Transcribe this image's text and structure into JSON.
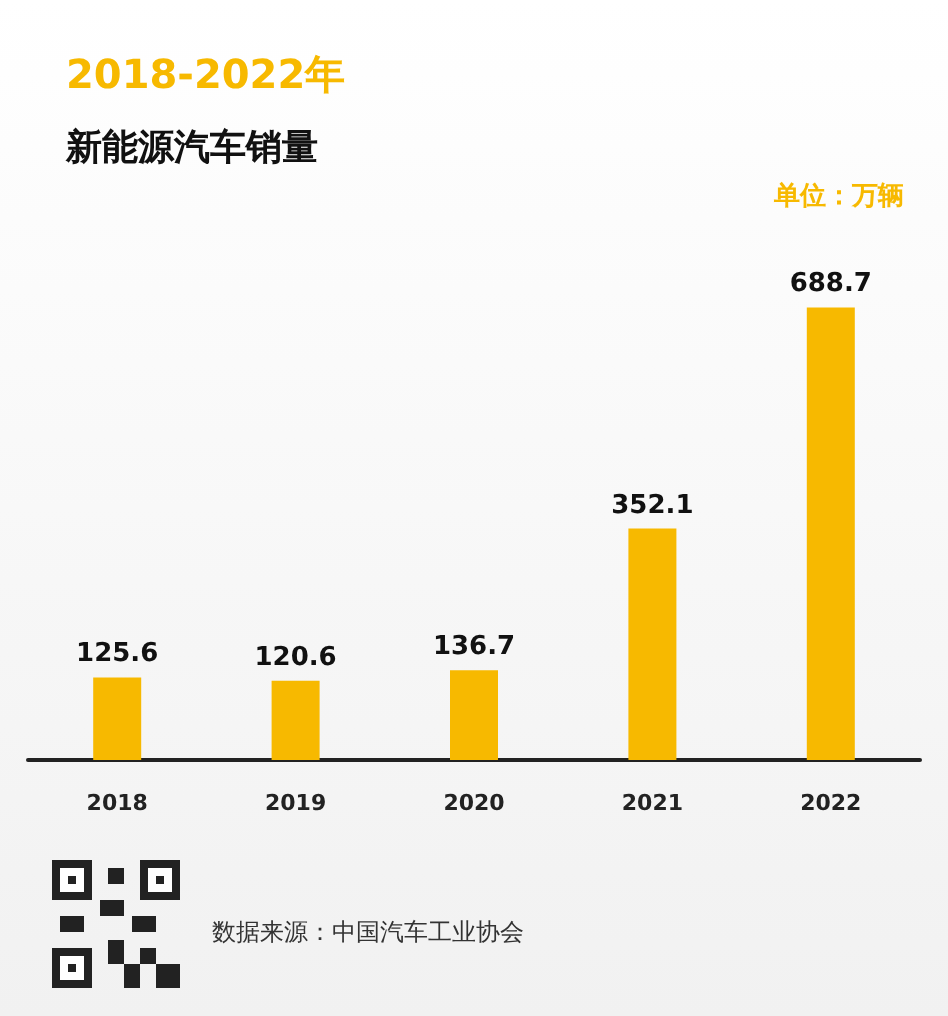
{
  "chart_data": {
    "type": "bar",
    "title": "2018-2022年",
    "subtitle": "新能源汽车销量",
    "categories": [
      "2018",
      "2019",
      "2020",
      "2021",
      "2022"
    ],
    "values": [
      125.6,
      120.6,
      136.7,
      352.1,
      688.7
    ],
    "color": "#f7b900",
    "data_labels": true,
    "grid": false,
    "annotations": [
      "单位：万辆",
      "数据来源：中国汽车工业协会"
    ]
  }
}
